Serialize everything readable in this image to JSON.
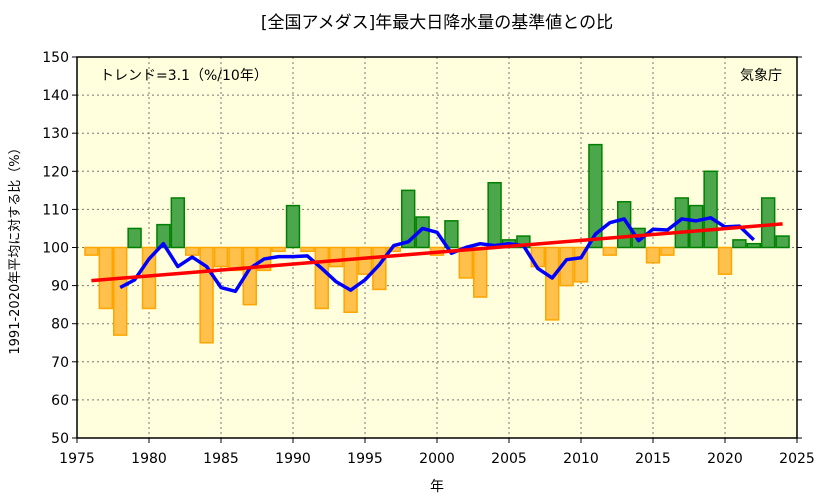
{
  "chart_data": {
    "type": "bar",
    "title": "[全国アメダス]年最大日降水量の基準値との比",
    "xlabel": "年",
    "ylabel": "1991-2020年平均に対する比（%）",
    "annotation_trend": "トレンド=3.1（%/10年）",
    "source": "気象庁",
    "xlim": [
      1975,
      2025
    ],
    "ylim": [
      50,
      150
    ],
    "baseline": 100,
    "grid": true,
    "x_ticks": [
      "1975",
      "1980",
      "1985",
      "1990",
      "1995",
      "2000",
      "2005",
      "2010",
      "2015",
      "2020",
      "2025"
    ],
    "y_ticks": [
      "50",
      "60",
      "70",
      "80",
      "90",
      "100",
      "110",
      "120",
      "130",
      "140",
      "150"
    ],
    "colors": {
      "above": "#4ca64c",
      "above_edge": "#008000",
      "below": "#ffc04c",
      "below_edge": "#ffa500",
      "moving_average": "#0000ff",
      "trend": "#ff0000",
      "background": "#ffffdd"
    },
    "years": [
      1976,
      1977,
      1978,
      1979,
      1980,
      1981,
      1982,
      1983,
      1984,
      1985,
      1986,
      1987,
      1988,
      1989,
      1990,
      1991,
      1992,
      1993,
      1994,
      1995,
      1996,
      1997,
      1998,
      1999,
      2000,
      2001,
      2002,
      2003,
      2004,
      2005,
      2006,
      2007,
      2008,
      2009,
      2010,
      2011,
      2012,
      2013,
      2014,
      2015,
      2016,
      2017,
      2018,
      2019,
      2020,
      2021,
      2022,
      2023,
      2024
    ],
    "values": [
      98,
      84,
      77,
      105,
      84,
      106,
      113,
      98,
      75,
      95,
      94,
      85,
      94,
      99,
      111,
      99,
      84,
      95,
      83,
      93,
      89,
      99,
      115,
      108,
      98,
      107,
      92,
      87,
      117,
      102,
      103,
      95,
      81,
      90,
      91,
      127,
      98,
      112,
      105,
      96,
      98,
      113,
      111,
      120,
      93,
      102,
      101,
      113,
      103
    ],
    "moving_average": {
      "years": [
        1978,
        1979,
        1980,
        1981,
        1982,
        1983,
        1984,
        1985,
        1986,
        1987,
        1988,
        1989,
        1990,
        1991,
        1992,
        1993,
        1994,
        1995,
        1996,
        1997,
        1998,
        1999,
        2000,
        2001,
        2002,
        2003,
        2004,
        2005,
        2006,
        2007,
        2008,
        2009,
        2010,
        2011,
        2012,
        2013,
        2014,
        2015,
        2016,
        2017,
        2018,
        2019,
        2020,
        2021,
        2022
      ],
      "values": [
        89.5,
        91.5,
        97,
        101,
        95,
        97.5,
        95,
        89.5,
        88.5,
        94.5,
        97,
        97.6,
        97.6,
        97.8,
        94.5,
        91,
        88.8,
        91.5,
        95.5,
        100.5,
        101.5,
        105,
        104,
        98.5,
        100,
        101,
        100.5,
        101,
        100.5,
        94.5,
        92,
        96.8,
        97.3,
        103.5,
        106.5,
        107.5,
        101.8,
        104.8,
        104.6,
        107.5,
        107,
        107.8,
        105.4,
        105.6,
        102
      ]
    },
    "trend": {
      "x": [
        1976,
        2024
      ],
      "y": [
        91.3,
        106.2
      ],
      "rate_per_decade": 3.1
    }
  }
}
